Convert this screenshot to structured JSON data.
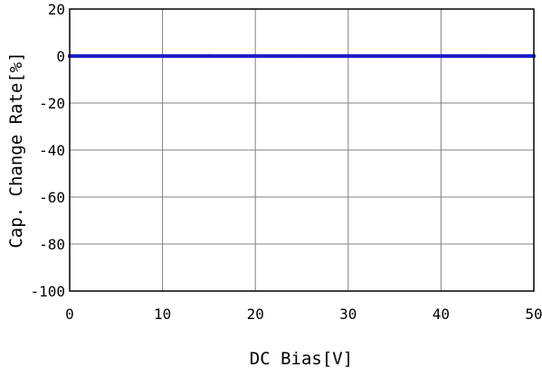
{
  "chart_data": {
    "type": "line",
    "title": "",
    "xlabel": "DC Bias[V]",
    "ylabel": "Cap. Change Rate[%]",
    "xlim": [
      0,
      50
    ],
    "ylim": [
      -100,
      20
    ],
    "x_ticks": [
      0,
      10,
      20,
      30,
      40,
      50
    ],
    "y_ticks": [
      20,
      0,
      -20,
      -40,
      -60,
      -80,
      -100
    ],
    "grid": true,
    "legend": "none",
    "series": [
      {
        "color": "#2020c8",
        "x": [
          0,
          5,
          10,
          15,
          20,
          25,
          30,
          35,
          40,
          45,
          50
        ],
        "y": [
          0,
          0,
          0,
          0,
          0,
          0,
          0,
          0,
          0,
          0,
          0
        ]
      }
    ]
  }
}
